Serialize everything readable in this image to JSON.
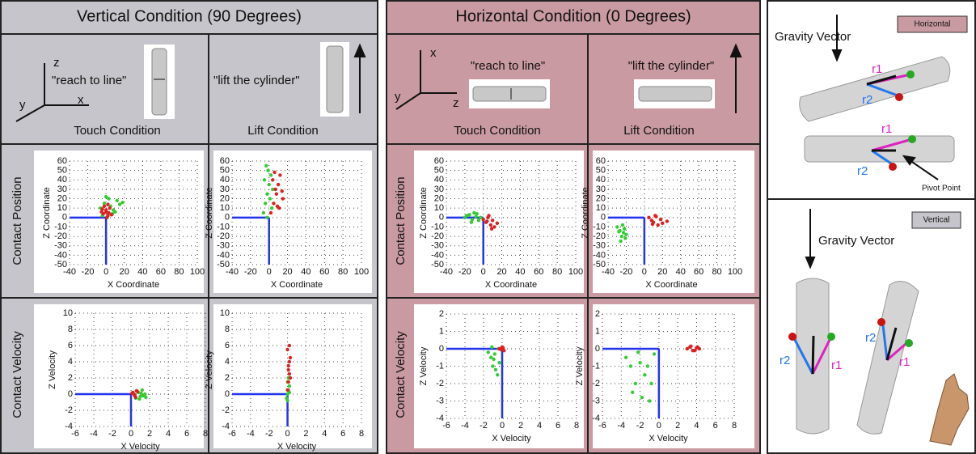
{
  "panels": [
    {
      "title": "Vertical Condition (90 Degrees)",
      "axis_labels": [
        "z",
        "y",
        "x"
      ],
      "touch": {
        "quote": "\"reach to line\"",
        "caption": "Touch Condition"
      },
      "lift": {
        "quote": "\"lift the cylinder\"",
        "caption": "Lift Condition"
      },
      "row_labels": [
        "Contact Position",
        "Contact Velocity"
      ]
    },
    {
      "title": "Horizontal Condition (0 Degrees)",
      "axis_labels": [
        "x",
        "y",
        "z"
      ],
      "touch": {
        "quote": "\"reach to line\"",
        "caption": "Touch Condition"
      },
      "lift": {
        "quote": "\"lift the cylinder\"",
        "caption": "Lift Condition"
      },
      "row_labels": [
        "Contact Position",
        "Contact Velocity"
      ]
    }
  ],
  "diagram": {
    "horizontal": {
      "badge": "Horizontal",
      "gravity": "Gravity Vector",
      "r1": "r1",
      "r2": "r2",
      "pivot": "Pivot Point"
    },
    "vertical": {
      "badge": "Vertical",
      "gravity": "Gravity Vector",
      "r1": "r1",
      "r2": "r2"
    }
  },
  "chart_data": [
    {
      "type": "scatter",
      "xlabel": "X Coordinate",
      "ylabel": "Z Coordinate",
      "xlim": [
        -40,
        100
      ],
      "ylim": [
        -50,
        60
      ],
      "xticks": [
        -40,
        -20,
        0,
        20,
        40,
        60,
        80,
        100
      ],
      "yticks": [
        -50,
        -40,
        -30,
        -20,
        -10,
        0,
        10,
        20,
        30,
        40,
        50,
        60
      ],
      "series": [
        {
          "color": "#33cc33",
          "x": [
            -6,
            -2,
            5,
            8,
            12,
            15,
            -4,
            3,
            10,
            18,
            0,
            7
          ],
          "values": [
            10,
            15,
            12,
            8,
            18,
            14,
            2,
            20,
            6,
            16,
            22,
            4
          ]
        },
        {
          "color": "#dd2020",
          "x": [
            -3,
            0,
            2,
            -5,
            4,
            1,
            -2,
            3,
            -4,
            6,
            0,
            2
          ],
          "values": [
            4,
            8,
            2,
            6,
            10,
            0,
            12,
            5,
            9,
            3,
            6,
            14
          ]
        }
      ]
    },
    {
      "type": "scatter",
      "xlabel": "X Coordinate",
      "ylabel": "Z Coordinate",
      "xlim": [
        -40,
        100
      ],
      "ylim": [
        -50,
        60
      ],
      "xticks": [
        -40,
        -20,
        0,
        20,
        40,
        60,
        80,
        100
      ],
      "yticks": [
        -50,
        -40,
        -30,
        -20,
        -10,
        0,
        10,
        20,
        30,
        40,
        50,
        60
      ],
      "series": [
        {
          "color": "#33cc33",
          "x": [
            -6,
            -4,
            -2,
            0,
            2,
            -3,
            1,
            -5,
            3,
            -1,
            4,
            -2
          ],
          "values": [
            5,
            15,
            25,
            35,
            45,
            55,
            20,
            40,
            10,
            50,
            30,
            0
          ]
        },
        {
          "color": "#dd2020",
          "x": [
            2,
            5,
            8,
            10,
            12,
            15,
            4,
            7,
            11,
            14,
            6,
            9
          ],
          "values": [
            5,
            15,
            25,
            35,
            45,
            20,
            40,
            30,
            10,
            28,
            48,
            12
          ]
        }
      ]
    },
    {
      "type": "scatter",
      "xlabel": "X Coordinate",
      "ylabel": "Z Coordinate",
      "xlim": [
        -40,
        100
      ],
      "ylim": [
        -50,
        60
      ],
      "xticks": [
        -40,
        -20,
        0,
        20,
        40,
        60,
        80,
        100
      ],
      "yticks": [
        -50,
        -40,
        -30,
        -20,
        -10,
        0,
        10,
        20,
        30,
        40,
        50,
        60
      ],
      "series": [
        {
          "color": "#33cc33",
          "x": [
            -20,
            -15,
            -12,
            -10,
            -8,
            -5,
            -18,
            -13,
            -7,
            -3
          ],
          "values": [
            0,
            3,
            -2,
            5,
            1,
            -3,
            2,
            -5,
            4,
            0
          ]
        },
        {
          "color": "#dd2020",
          "x": [
            0,
            3,
            5,
            8,
            10,
            12,
            15,
            6,
            9,
            4
          ],
          "values": [
            -2,
            -5,
            0,
            -8,
            -3,
            -10,
            -6,
            2,
            -12,
            -4
          ]
        }
      ]
    },
    {
      "type": "scatter",
      "xlabel": "X Coordinate",
      "ylabel": "Z Coordinate",
      "xlim": [
        -40,
        100
      ],
      "ylim": [
        -50,
        60
      ],
      "xticks": [
        -40,
        -20,
        0,
        20,
        40,
        60,
        80,
        100
      ],
      "yticks": [
        -50,
        -40,
        -30,
        -20,
        -10,
        0,
        10,
        20,
        30,
        40,
        50,
        60
      ],
      "series": [
        {
          "color": "#33cc33",
          "x": [
            -30,
            -28,
            -25,
            -22,
            -20,
            -26,
            -24,
            -21,
            -27,
            -23
          ],
          "values": [
            -10,
            -15,
            -20,
            -12,
            -18,
            -25,
            -8,
            -22,
            -14,
            -16
          ]
        },
        {
          "color": "#dd2020",
          "x": [
            5,
            8,
            10,
            12,
            15,
            18,
            20,
            25,
            13,
            9
          ],
          "values": [
            0,
            -3,
            -5,
            2,
            -8,
            -2,
            -6,
            -4,
            1,
            -7
          ]
        }
      ]
    },
    {
      "type": "scatter",
      "xlabel": "X Velocity",
      "ylabel": "Z Velocity",
      "xlim": [
        -6,
        8
      ],
      "ylim": [
        -4,
        10
      ],
      "xticks": [
        -6,
        -4,
        -2,
        0,
        2,
        4,
        6,
        8
      ],
      "yticks": [
        -4,
        -2,
        0,
        2,
        4,
        6,
        8,
        10
      ],
      "series": [
        {
          "color": "#33cc33",
          "x": [
            0.5,
            0.8,
            1,
            1.2,
            1.5,
            0.9,
            1.3,
            0.6,
            1.1,
            1.6
          ],
          "values": [
            -0.5,
            0.2,
            -0.3,
            0.5,
            0,
            -0.6,
            -0.2,
            0.4,
            0.1,
            -0.4
          ]
        },
        {
          "color": "#dd2020",
          "x": [
            0.2,
            0.4,
            0.6,
            0.3,
            0.5,
            0.1,
            0.7,
            0.4
          ],
          "values": [
            0.2,
            -0.2,
            0.4,
            0,
            -0.4,
            0.1,
            0.3,
            -0.1
          ]
        }
      ]
    },
    {
      "type": "scatter",
      "xlabel": "X Velocity",
      "ylabel": "Z Velocity",
      "xlim": [
        -6,
        8
      ],
      "ylim": [
        -4,
        10
      ],
      "xticks": [
        -6,
        -4,
        -2,
        0,
        2,
        4,
        6,
        8
      ],
      "yticks": [
        -4,
        -2,
        0,
        2,
        4,
        6,
        8,
        10
      ],
      "series": [
        {
          "color": "#33cc33",
          "x": [
            -0.1,
            0,
            0.1,
            0.2,
            0,
            0.1,
            0,
            0.2
          ],
          "values": [
            -0.5,
            0,
            0.5,
            1,
            1.5,
            2,
            -0.8,
            0.2
          ]
        },
        {
          "color": "#dd2020",
          "x": [
            0,
            0.1,
            0.2,
            0.1,
            0.3,
            0,
            0.2,
            0.1,
            0.3,
            0.2
          ],
          "values": [
            0.5,
            1.5,
            2.5,
            3.5,
            4.5,
            5.5,
            6,
            3,
            2,
            4
          ]
        }
      ]
    },
    {
      "type": "scatter",
      "xlabel": "X Velocity",
      "ylabel": "Z Velocity",
      "xlim": [
        -6,
        8
      ],
      "ylim": [
        -4,
        2
      ],
      "xticks": [
        -6,
        -4,
        -2,
        0,
        2,
        4,
        6,
        8
      ],
      "yticks": [
        -4,
        -3,
        -2,
        -1,
        0,
        1,
        2
      ],
      "series": [
        {
          "color": "#33cc33",
          "x": [
            -1.5,
            -1.2,
            -1,
            -0.8,
            -0.5,
            -0.3,
            -1.1,
            -0.7,
            -0.9,
            -0.4
          ],
          "values": [
            -0.2,
            -0.5,
            -1,
            -0.3,
            -1.5,
            -0.8,
            0.1,
            -1.2,
            -0.6,
            0
          ]
        },
        {
          "color": "#dd2020",
          "x": [
            -0.3,
            0,
            0.2,
            0.1,
            -0.1
          ],
          "values": [
            0,
            0.1,
            -0.1,
            0.05,
            -0.05
          ]
        }
      ]
    },
    {
      "type": "scatter",
      "xlabel": "X Velocity",
      "ylabel": "Z Velocity",
      "xlim": [
        -6,
        8
      ],
      "ylim": [
        -4,
        2
      ],
      "xticks": [
        -6,
        -4,
        -2,
        0,
        2,
        4,
        6,
        8
      ],
      "yticks": [
        -4,
        -3,
        -2,
        -1,
        0,
        1,
        2
      ],
      "series": [
        {
          "color": "#33cc33",
          "x": [
            -3.5,
            -3,
            -2.5,
            -2,
            -1.5,
            -1,
            -0.5,
            -2.8,
            -1.8,
            -1.2,
            -2.2,
            -0.8
          ],
          "values": [
            -0.5,
            -1,
            -2,
            -0.8,
            -1.5,
            -3,
            -0.3,
            -2.5,
            -2.8,
            -1,
            -0.2,
            -2
          ]
        },
        {
          "color": "#dd2020",
          "x": [
            3,
            3.3,
            3.6,
            4,
            4.3,
            3.8,
            3.4,
            4.1
          ],
          "values": [
            0,
            0.1,
            -0.1,
            0.05,
            0,
            -0.1,
            0.15,
            0.1
          ]
        }
      ]
    }
  ]
}
